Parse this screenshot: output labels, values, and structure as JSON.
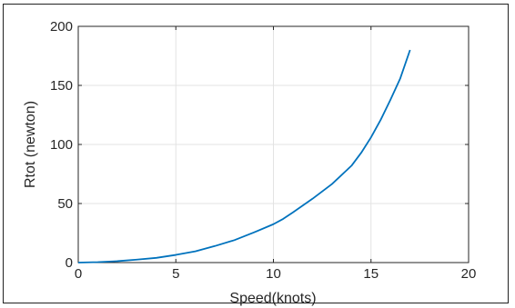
{
  "chart_data": {
    "type": "line",
    "title": "",
    "xlabel": "Speed(knots)",
    "ylabel": "Rtot (newton)",
    "xlim": [
      0,
      20
    ],
    "ylim": [
      0,
      200
    ],
    "xticks": [
      0,
      5,
      10,
      15,
      20
    ],
    "yticks": [
      0,
      50,
      100,
      150,
      200
    ],
    "xtick_labels": [
      "0",
      "5",
      "10",
      "15",
      "20"
    ],
    "ytick_labels": [
      "0",
      "50",
      "100",
      "150",
      "200"
    ],
    "grid": true,
    "line_color": "#0072BD",
    "series": [
      {
        "x": [
          0,
          1,
          2,
          3,
          4,
          5,
          6,
          7,
          8,
          9,
          10,
          10.5,
          11,
          12,
          13,
          14,
          14.5,
          15,
          15.5,
          16,
          16.5,
          17
        ],
        "values": [
          0,
          0.4,
          1.2,
          2.5,
          4,
          6.5,
          9.5,
          14,
          19,
          25.5,
          32.5,
          37,
          42.5,
          54,
          66.5,
          82,
          93,
          106,
          121,
          138,
          156,
          180
        ]
      }
    ]
  }
}
